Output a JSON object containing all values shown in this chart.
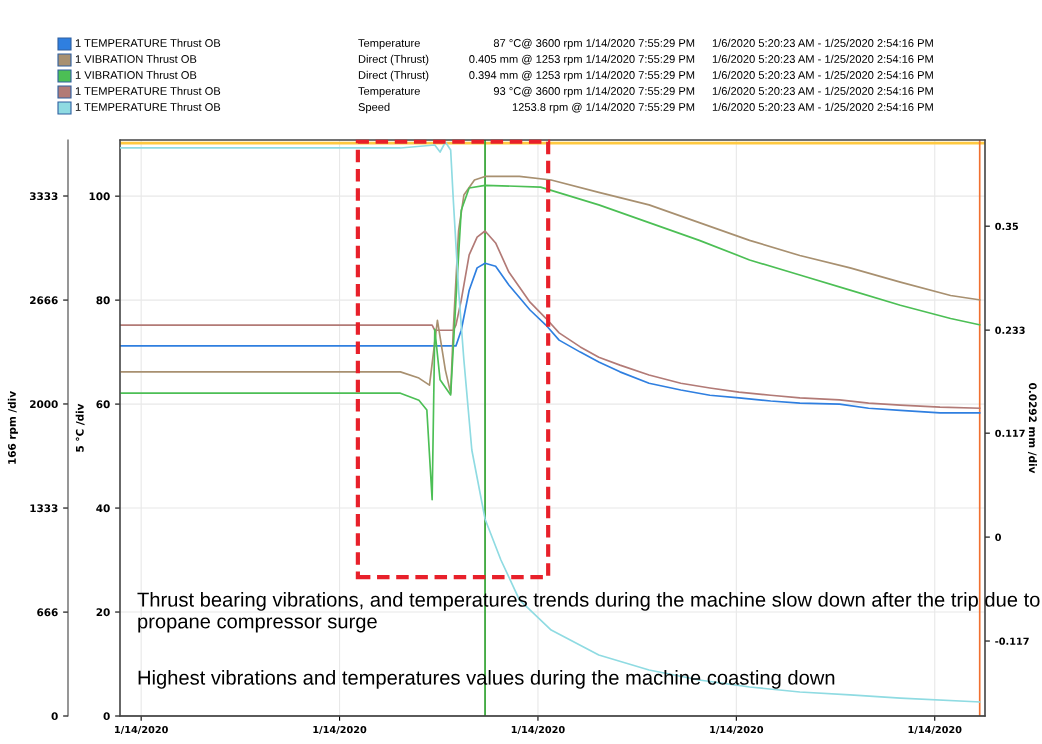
{
  "chart_data": {
    "type": "line",
    "ylabel": "5 °C /div",
    "y2label": "0.0292 mm /div",
    "y3label": "166 rpm /div",
    "xlim": [
      "2020-01-14T17:37",
      "2020-01-14T23:04"
    ],
    "xticks": [
      {
        "value": "2020-01-14T17:45",
        "label": "1/14/2020"
      },
      {
        "value": "2020-01-14T19:00",
        "label": "1/14/2020"
      },
      {
        "value": "2020-01-14T20:15",
        "label": "1/14/2020"
      },
      {
        "value": "2020-01-14T21:30",
        "label": "1/14/2020"
      },
      {
        "value": "2020-01-14T22:45",
        "label": "1/14/2020"
      }
    ],
    "ylim": [
      0,
      110.8
    ],
    "yticks": [
      0,
      20,
      40,
      60,
      80,
      100
    ],
    "y2lim": [
      -0.2014,
      0.447
    ],
    "y2ticks": [
      -0.117,
      0,
      0.117,
      0.233,
      0.35
    ],
    "y3lim": [
      0,
      3692
    ],
    "y3ticks": [
      0,
      666,
      1333,
      2000,
      2666,
      3333
    ],
    "grid": true,
    "legend": "top",
    "series": [
      {
        "name": "1 TEMPERATURE Thrust OB",
        "color": "#2f7fe0",
        "x": [
          "2020-01-14T17:37",
          "2020-01-14T19:44",
          "2020-01-14T19:46",
          "2020-01-14T19:49",
          "2020-01-14T19:52",
          "2020-01-14T19:55",
          "2020-01-14T19:59",
          "2020-01-14T20:04",
          "2020-01-14T20:12",
          "2020-01-14T20:18",
          "2020-01-14T20:23",
          "2020-01-14T20:31",
          "2020-01-14T20:38",
          "2020-01-14T20:46",
          "2020-01-14T20:57",
          "2020-01-14T21:09",
          "2020-01-14T21:20",
          "2020-01-14T21:31",
          "2020-01-14T21:43",
          "2020-01-14T21:54",
          "2020-01-14T22:09",
          "2020-01-14T22:20",
          "2020-01-14T22:32",
          "2020-01-14T22:47",
          "2020-01-14T23:02"
        ],
        "values": [
          71.2,
          71.2,
          74.2,
          81.9,
          86.2,
          87.1,
          86.5,
          82.9,
          78.1,
          75.2,
          72.3,
          70.0,
          68.1,
          66.2,
          64.0,
          62.7,
          61.7,
          61.2,
          60.6,
          60.2,
          60.0,
          59.2,
          58.8,
          58.3,
          58.3
        ]
      },
      {
        "name": "1 VIBRATION Thrust OB",
        "color": "#a89070",
        "axis": "y2",
        "x": [
          "2020-01-14T17:37",
          "2020-01-14T19:23",
          "2020-01-14T19:30",
          "2020-01-14T19:34",
          "2020-01-14T19:37",
          "2020-01-14T19:40",
          "2020-01-14T19:42",
          "2020-01-14T19:43",
          "2020-01-14T19:45",
          "2020-01-14T19:47",
          "2020-01-14T19:51",
          "2020-01-14T19:55",
          "2020-01-14T20:08",
          "2020-01-14T20:20",
          "2020-01-14T20:38",
          "2020-01-14T20:57",
          "2020-01-14T21:16",
          "2020-01-14T21:35",
          "2020-01-14T21:54",
          "2020-01-14T22:13",
          "2020-01-14T22:32",
          "2020-01-14T22:51",
          "2020-01-14T23:02"
        ],
        "values": [
          0.186,
          0.186,
          0.179,
          0.171,
          0.244,
          0.188,
          0.162,
          0.234,
          0.345,
          0.385,
          0.402,
          0.406,
          0.406,
          0.402,
          0.388,
          0.374,
          0.354,
          0.334,
          0.317,
          0.303,
          0.287,
          0.272,
          0.267
        ]
      },
      {
        "name": "1 VIBRATION Thrust OB",
        "color": "#4cbf55",
        "axis": "y2",
        "x": [
          "2020-01-14T17:37",
          "2020-01-14T19:23",
          "2020-01-14T19:30",
          "2020-01-14T19:33",
          "2020-01-14T19:35",
          "2020-01-14T19:36",
          "2020-01-14T19:38",
          "2020-01-14T19:42",
          "2020-01-14T19:44",
          "2020-01-14T19:46",
          "2020-01-14T19:49",
          "2020-01-14T19:55",
          "2020-01-14T20:16",
          "2020-01-14T20:38",
          "2020-01-14T20:57",
          "2020-01-14T21:16",
          "2020-01-14T21:35",
          "2020-01-14T21:54",
          "2020-01-14T22:13",
          "2020-01-14T22:32",
          "2020-01-14T22:51",
          "2020-01-14T23:02"
        ],
        "values": [
          0.162,
          0.162,
          0.154,
          0.143,
          0.042,
          0.234,
          0.177,
          0.16,
          0.267,
          0.368,
          0.393,
          0.396,
          0.394,
          0.374,
          0.354,
          0.334,
          0.312,
          0.295,
          0.278,
          0.261,
          0.246,
          0.239
        ]
      },
      {
        "name": "1 TEMPERATURE Thrust OB",
        "color": "#b27a76",
        "x": [
          "2020-01-14T17:37",
          "2020-01-14T19:35",
          "2020-01-14T19:36",
          "2020-01-14T19:43",
          "2020-01-14T19:44",
          "2020-01-14T19:46",
          "2020-01-14T19:49",
          "2020-01-14T19:52",
          "2020-01-14T19:55",
          "2020-01-14T19:59",
          "2020-01-14T20:04",
          "2020-01-14T20:12",
          "2020-01-14T20:18",
          "2020-01-14T20:23",
          "2020-01-14T20:31",
          "2020-01-14T20:38",
          "2020-01-14T20:46",
          "2020-01-14T20:57",
          "2020-01-14T21:09",
          "2020-01-14T21:20",
          "2020-01-14T21:31",
          "2020-01-14T21:43",
          "2020-01-14T21:54",
          "2020-01-14T22:09",
          "2020-01-14T22:20",
          "2020-01-14T22:32",
          "2020-01-14T22:47",
          "2020-01-14T23:02"
        ],
        "values": [
          75.2,
          75.2,
          74.2,
          74.2,
          75.2,
          80.0,
          88.7,
          92.1,
          93.3,
          91.0,
          85.4,
          79.6,
          76.5,
          73.7,
          71.0,
          69.0,
          67.5,
          65.6,
          64.0,
          63.1,
          62.3,
          61.7,
          61.2,
          60.8,
          60.2,
          59.8,
          59.4,
          59.2
        ]
      },
      {
        "name": "1 TEMPERATURE Thrust OB",
        "color": "#8fdbe2",
        "axis": "y3",
        "x": [
          "2020-01-14T17:37",
          "2020-01-14T19:23",
          "2020-01-14T19:36",
          "2020-01-14T19:38",
          "2020-01-14T19:40",
          "2020-01-14T19:42",
          "2020-01-14T19:43",
          "2020-01-14T19:45",
          "2020-01-14T19:47",
          "2020-01-14T19:50",
          "2020-01-14T19:55",
          "2020-01-14T20:01",
          "2020-01-14T20:08",
          "2020-01-14T20:20",
          "2020-01-14T20:38",
          "2020-01-14T20:57",
          "2020-01-14T21:16",
          "2020-01-14T21:35",
          "2020-01-14T21:54",
          "2020-01-14T22:13",
          "2020-01-14T22:32",
          "2020-01-14T23:02"
        ],
        "values": [
          3641,
          3641,
          3660,
          3615,
          3679,
          3628,
          3308,
          2731,
          2282,
          1705,
          1263,
          1000,
          744,
          551,
          391,
          295,
          231,
          186,
          154,
          135,
          115,
          90
        ]
      }
    ],
    "ref_lines": [
      {
        "axis": "y",
        "value": 110.2,
        "color": "#ffc940"
      },
      {
        "axis": "x",
        "value": "2020-01-14T19:55",
        "color": "#2ca02c"
      },
      {
        "axis": "x",
        "value": "2020-01-14T23:02",
        "color": "#f07030"
      }
    ],
    "annotations": [
      "Temperature",
      "87 °C@ 3600 rpm 1/14/2020 7:55:29 PM",
      "1/6/2020 5:20:23 AM - 1/25/2020 2:54:16 PM",
      "Direct (Thrust)",
      "0.405 mm @ 1253 rpm 1/14/2020 7:55:29 PM",
      "1/6/2020 5:20:23 AM - 1/25/2020 2:54:16 PM",
      "Direct (Thrust)",
      "0.394 mm @ 1253 rpm 1/14/2020 7:55:29 PM",
      "1/6/2020 5:20:23 AM - 1/25/2020 2:54:16 PM",
      "Temperature",
      "93 °C@ 3600 rpm 1/14/2020 7:55:29 PM",
      "1/6/2020 5:20:23 AM - 1/25/2020 2:54:16 PM",
      "Speed",
      "1253.8 rpm @ 1/14/2020 7:55:29 PM",
      "1/6/2020 5:20:23 AM - 1/25/2020 2:54:16 PM",
      "Thrust bearing vibrations, and temperatures trends during the machine slow down after the trip due to propane compressor surge",
      "Highest vibrations and temperatures values during the machine coasting down"
    ]
  }
}
